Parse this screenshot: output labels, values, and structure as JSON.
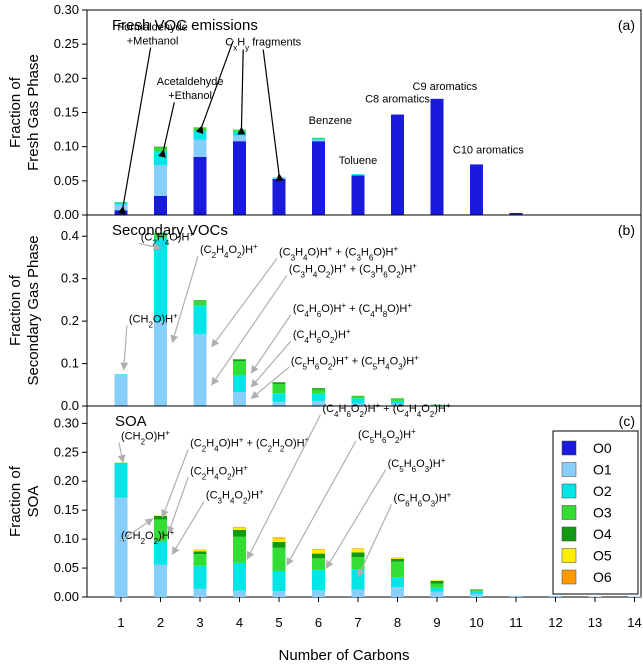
{
  "chart_data": [
    {
      "type": "bar",
      "stacked": true,
      "panel_label": "(a)",
      "title": "Fresh VOC emissions",
      "ylabel": [
        "Fraction of",
        "Fresh Gas Phase"
      ],
      "xlabel": "",
      "ylim": [
        0,
        0.3
      ],
      "yticks": [
        0.0,
        0.05,
        0.1,
        0.15,
        0.2,
        0.25,
        0.3
      ],
      "categories": [
        "1",
        "2",
        "3",
        "4",
        "5",
        "6",
        "7",
        "8",
        "9",
        "10",
        "11",
        "12",
        "13",
        "14"
      ],
      "series": [
        {
          "name": "O0",
          "color": "#1a1adc",
          "values": [
            0.007,
            0.028,
            0.085,
            0.108,
            0.053,
            0.108,
            0.058,
            0.147,
            0.17,
            0.074,
            0.003,
            0,
            0,
            0
          ]
        },
        {
          "name": "O1",
          "color": "#87cefa",
          "values": [
            0.008,
            0.045,
            0.025,
            0.008,
            0.001,
            0.002,
            0.001,
            0.0,
            0.0,
            0.0,
            0,
            0,
            0,
            0
          ]
        },
        {
          "name": "O2",
          "color": "#00e5e5",
          "values": [
            0.003,
            0.02,
            0.013,
            0.006,
            0.001,
            0.002,
            0.001,
            0.0,
            0.0,
            0.0,
            0,
            0,
            0,
            0
          ]
        },
        {
          "name": "O3",
          "color": "#33dd33",
          "values": [
            0.001,
            0.006,
            0.004,
            0.003,
            0.0,
            0.001,
            0.0,
            0.0,
            0.0,
            0.0,
            0,
            0,
            0,
            0
          ]
        },
        {
          "name": "O4",
          "color": "#119911",
          "values": [
            0,
            0.001,
            0.001,
            0.0,
            0,
            0,
            0,
            0,
            0,
            0,
            0,
            0,
            0,
            0
          ]
        },
        {
          "name": "O5",
          "color": "#ffee00",
          "values": [
            0,
            0,
            0,
            0,
            0,
            0,
            0,
            0,
            0,
            0,
            0,
            0,
            0,
            0
          ]
        },
        {
          "name": "O6",
          "color": "#ff9900",
          "values": [
            0,
            0,
            0,
            0,
            0,
            0,
            0,
            0,
            0,
            0,
            0,
            0,
            0,
            0
          ]
        }
      ],
      "annotations": [
        {
          "lines": [
            "Formaldehyde",
            "+Methanol"
          ],
          "tx": 1.8,
          "ty": 0.27
        },
        {
          "lines": [
            "Acetaldehyde",
            "+Ethanol"
          ],
          "tx": 2.75,
          "ty": 0.19
        },
        {
          "lines": [
            "C",
            "x",
            "H",
            "y",
            " fragments"
          ],
          "sub": true,
          "tx": 4.6,
          "ty": 0.248
        },
        {
          "lines": [
            "Benzene"
          ],
          "tx": 6.3,
          "ty": 0.133
        },
        {
          "lines": [
            "Toluene"
          ],
          "tx": 7.0,
          "ty": 0.075
        },
        {
          "lines": [
            "C8 aromatics"
          ],
          "tx": 8.0,
          "ty": 0.165
        },
        {
          "lines": [
            "C9 aromatics"
          ],
          "tx": 9.2,
          "ty": 0.183
        },
        {
          "lines": [
            "C10 aromatics"
          ],
          "tx": 10.3,
          "ty": 0.09
        }
      ]
    },
    {
      "type": "bar",
      "stacked": true,
      "panel_label": "(b)",
      "title": "Secondary VOCs",
      "ylabel": [
        "Fraction of",
        "Secondary Gas Phase"
      ],
      "xlabel": "",
      "ylim": [
        0,
        0.45
      ],
      "yticks": [
        0.0,
        0.1,
        0.2,
        0.3,
        0.4
      ],
      "categories": [
        "1",
        "2",
        "3",
        "4",
        "5",
        "6",
        "7",
        "8",
        "9",
        "10",
        "11",
        "12",
        "13",
        "14"
      ],
      "series": [
        {
          "name": "O0",
          "color": "#1a1adc",
          "values": [
            0,
            0,
            0,
            0,
            0,
            0,
            0,
            0,
            0,
            0,
            0,
            0,
            0,
            0
          ]
        },
        {
          "name": "O1",
          "color": "#87cefa",
          "values": [
            0.074,
            0.2,
            0.17,
            0.033,
            0.01,
            0.012,
            0.006,
            0.005,
            0.001,
            0.0,
            0,
            0,
            0,
            0
          ]
        },
        {
          "name": "O2",
          "color": "#00e5e5",
          "values": [
            0.001,
            0.195,
            0.067,
            0.04,
            0.02,
            0.017,
            0.012,
            0.007,
            0.001,
            0.0,
            0,
            0,
            0,
            0
          ]
        },
        {
          "name": "O3",
          "color": "#33dd33",
          "values": [
            0,
            0.012,
            0.01,
            0.033,
            0.022,
            0.01,
            0.005,
            0.005,
            0.001,
            0.0,
            0,
            0,
            0,
            0
          ]
        },
        {
          "name": "O4",
          "color": "#119911",
          "values": [
            0,
            0.001,
            0.002,
            0.004,
            0.004,
            0.003,
            0.001,
            0.001,
            0.0,
            0.0,
            0,
            0,
            0,
            0
          ]
        },
        {
          "name": "O5",
          "color": "#ffee00",
          "values": [
            0,
            0,
            0,
            0,
            0,
            0,
            0,
            0,
            0,
            0,
            0,
            0,
            0,
            0
          ]
        },
        {
          "name": "O6",
          "color": "#ff9900",
          "values": [
            0,
            0,
            0,
            0,
            0,
            0,
            0,
            0,
            0,
            0,
            0,
            0,
            0,
            0
          ]
        }
      ],
      "annotations": [
        {
          "label": "(C2H4O)H+",
          "ax": 1.5,
          "ay": 0.39,
          "bx": 2.0,
          "by": 0.372
        },
        {
          "label": "(CH2O)H+",
          "ax": 1.2,
          "ay": 0.197,
          "bx": 1.07,
          "by": 0.086
        },
        {
          "label": "(C2H4O2)H+",
          "ax": 3.0,
          "ay": 0.36,
          "bx": 2.3,
          "by": 0.15
        },
        {
          "label": "(C3H4O)H+ + (C3H6O)H+",
          "ax": 5.0,
          "ay": 0.355,
          "bx": 3.3,
          "by": 0.14
        },
        {
          "label": "(C3H4O2)H+ + (C3H6O2)H+",
          "ax": 5.25,
          "ay": 0.315,
          "bx": 3.3,
          "by": 0.05
        },
        {
          "label": "(C4H6O)H+ + (C4H8O)H+",
          "ax": 5.35,
          "ay": 0.222,
          "bx": 4.3,
          "by": 0.078
        },
        {
          "label": "(C4H6O2)H+",
          "ax": 5.35,
          "ay": 0.16,
          "bx": 4.3,
          "by": 0.045
        },
        {
          "label": "(C5H6O2)H+ + (C5H4O3)H+",
          "ax": 5.3,
          "ay": 0.098,
          "bx": 4.3,
          "by": 0.018
        }
      ]
    },
    {
      "type": "bar",
      "stacked": true,
      "panel_label": "(c)",
      "title": "SOA",
      "ylabel": [
        "Fraction of",
        "SOA"
      ],
      "xlabel": "Number of Carbons",
      "ylim": [
        0,
        0.33
      ],
      "yticks": [
        0.0,
        0.05,
        0.1,
        0.15,
        0.2,
        0.25,
        0.3
      ],
      "categories": [
        "1",
        "2",
        "3",
        "4",
        "5",
        "6",
        "7",
        "8",
        "9",
        "10",
        "11",
        "12",
        "13",
        "14"
      ],
      "series": [
        {
          "name": "O0",
          "color": "#1a1adc",
          "values": [
            0,
            0,
            0,
            0,
            0,
            0,
            0,
            0,
            0,
            0,
            0,
            0,
            0,
            0
          ]
        },
        {
          "name": "O1",
          "color": "#87cefa",
          "values": [
            0.172,
            0.056,
            0.014,
            0.011,
            0.01,
            0.012,
            0.013,
            0.017,
            0.009,
            0.005,
            0.002,
            0.002,
            0.001,
            0.001
          ]
        },
        {
          "name": "O2",
          "color": "#00e5e5",
          "values": [
            0.058,
            0.04,
            0.04,
            0.048,
            0.035,
            0.035,
            0.035,
            0.017,
            0.007,
            0.004,
            0.0,
            0.0,
            0.0,
            0.0
          ]
        },
        {
          "name": "O3",
          "color": "#33dd33",
          "values": [
            0.002,
            0.038,
            0.02,
            0.045,
            0.04,
            0.02,
            0.021,
            0.027,
            0.007,
            0.003,
            0,
            0,
            0,
            0
          ]
        },
        {
          "name": "O4",
          "color": "#119911",
          "values": [
            0,
            0.006,
            0.005,
            0.012,
            0.01,
            0.008,
            0.008,
            0.005,
            0.005,
            0.001,
            0,
            0,
            0,
            0
          ]
        },
        {
          "name": "O5",
          "color": "#ffee00",
          "values": [
            0,
            0.001,
            0.002,
            0.004,
            0.006,
            0.007,
            0.006,
            0.003,
            0.001,
            0,
            0,
            0,
            0,
            0
          ]
        },
        {
          "name": "O6",
          "color": "#ff9900",
          "values": [
            0,
            0,
            0.001,
            0.001,
            0.002,
            0.001,
            0.001,
            0,
            0,
            0,
            0,
            0,
            0,
            0
          ]
        }
      ],
      "annotations": [
        {
          "label": "(CH2O)H+",
          "ax": 1.0,
          "ay": 0.272,
          "bx": 1.05,
          "by": 0.233
        },
        {
          "label": "(C2H4O)H+ + (C2H2O)H+",
          "ax": 2.75,
          "ay": 0.26,
          "bx": 2.05,
          "by": 0.138
        },
        {
          "label": "(C2H4O2)H+",
          "ax": 2.75,
          "ay": 0.212,
          "bx": 2.2,
          "by": 0.11
        },
        {
          "label": "(C3H4O2)H+",
          "ax": 3.15,
          "ay": 0.17,
          "bx": 2.3,
          "by": 0.074
        },
        {
          "label": "(CH2O2)H+",
          "ax": 1.0,
          "ay": 0.1,
          "bx": 1.8,
          "by": 0.135
        },
        {
          "label": "(C4H6O2)H+ + (C4H4O2)H+",
          "ax": 6.1,
          "ay": 0.32,
          "bx": 4.2,
          "by": 0.066
        },
        {
          "label": "(C5H6O2)H+",
          "ax": 7.0,
          "ay": 0.275,
          "bx": 5.2,
          "by": 0.055
        },
        {
          "label": "(C5H6O3)H+",
          "ax": 7.75,
          "ay": 0.225,
          "bx": 6.2,
          "by": 0.05
        },
        {
          "label": "(C6H6O3)H+",
          "ax": 7.9,
          "ay": 0.165,
          "bx": 7.0,
          "by": 0.035
        }
      ]
    }
  ],
  "legend": {
    "placement": "right",
    "entries": [
      {
        "name": "O0",
        "color": "#1a1adc"
      },
      {
        "name": "O1",
        "color": "#87cefa"
      },
      {
        "name": "O2",
        "color": "#00e5e5"
      },
      {
        "name": "O3",
        "color": "#33dd33"
      },
      {
        "name": "O4",
        "color": "#119911"
      },
      {
        "name": "O5",
        "color": "#ffee00"
      },
      {
        "name": "O6",
        "color": "#ff9900"
      }
    ]
  }
}
